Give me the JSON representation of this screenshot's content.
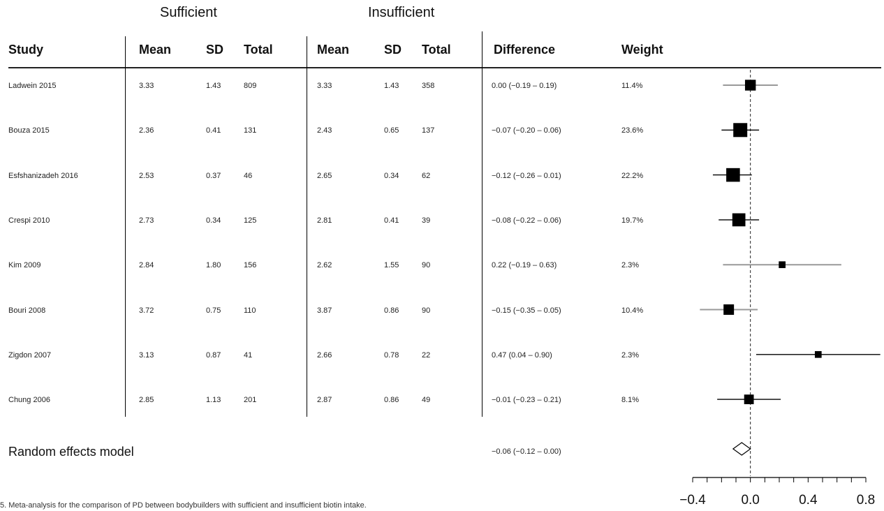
{
  "header": {
    "group_sufficient": "Sufficient",
    "group_insufficient": "Insufficient",
    "columns": [
      "Study",
      "Mean",
      "SD",
      "Total",
      "Mean",
      "SD",
      "Total",
      "Difference",
      "Weight"
    ]
  },
  "rows": [
    {
      "study": "Ladwein 2015",
      "m1": "3.33",
      "sd1": "1.43",
      "n1": "809",
      "m2": "3.33",
      "sd2": "1.43",
      "n2": "358",
      "diff": "0.00 (−0.19 – 0.19)",
      "weight": "11.4%"
    },
    {
      "study": "Bouza 2015",
      "m1": "2.36",
      "sd1": "0.41",
      "n1": "131",
      "m2": "2.43",
      "sd2": "0.65",
      "n2": "137",
      "diff": "−0.07 (−0.20 – 0.06)",
      "weight": "23.6%"
    },
    {
      "study": "Esfshanizadeh 2016",
      "m1": "2.53",
      "sd1": "0.37",
      "n1": "46",
      "m2": "2.65",
      "sd2": "0.34",
      "n2": "62",
      "diff": "−0.12 (−0.26 – 0.01)",
      "weight": "22.2%"
    },
    {
      "study": "Crespi 2010",
      "m1": "2.73",
      "sd1": "0.34",
      "n1": "125",
      "m2": "2.81",
      "sd2": "0.41",
      "n2": "39",
      "diff": "−0.08 (−0.22 – 0.06)",
      "weight": "19.7%"
    },
    {
      "study": "Kim 2009",
      "m1": "2.84",
      "sd1": "1.80",
      "n1": "156",
      "m2": "2.62",
      "sd2": "1.55",
      "n2": "90",
      "diff": "0.22 (−0.19 – 0.63)",
      "weight": "2.3%"
    },
    {
      "study": "Bouri 2008",
      "m1": "3.72",
      "sd1": "0.75",
      "n1": "110",
      "m2": "3.87",
      "sd2": "0.86",
      "n2": "90",
      "diff": "−0.15 (−0.35 – 0.05)",
      "weight": "10.4%"
    },
    {
      "study": "Zigdon 2007",
      "m1": "3.13",
      "sd1": "0.87",
      "n1": "41",
      "m2": "2.66",
      "sd2": "0.78",
      "n2": "22",
      "diff": "0.47 (0.04 – 0.90)",
      "weight": "2.3%"
    },
    {
      "study": "Chung 2006",
      "m1": "2.85",
      "sd1": "1.13",
      "n1": "201",
      "m2": "2.87",
      "sd2": "0.86",
      "n2": "49",
      "diff": "−0.01 (−0.23 – 0.21)",
      "weight": "8.1%"
    }
  ],
  "random_effects": {
    "label": "Random effects model",
    "value": "−0.06 (−0.12 – 0.00)"
  },
  "caption": "5. Meta-analysis for the comparison of PD between bodybuilders with sufficient and insufficient biotin intake.",
  "chart_data": {
    "type": "forest",
    "xlim": [
      -0.4,
      0.8
    ],
    "xticks": [
      -0.4,
      0.0,
      0.4,
      0.8
    ],
    "xtick_labels": [
      "−0.4",
      "0.0",
      "0.4",
      "0.8"
    ],
    "reference_line": 0.0,
    "studies": [
      {
        "name": "Ladwein 2015",
        "est": 0.0,
        "lo": -0.19,
        "hi": 0.19,
        "weight": 11.4
      },
      {
        "name": "Bouza 2015",
        "est": -0.07,
        "lo": -0.2,
        "hi": 0.06,
        "weight": 23.6
      },
      {
        "name": "Esfshanizadeh 2016",
        "est": -0.12,
        "lo": -0.26,
        "hi": 0.01,
        "weight": 22.2
      },
      {
        "name": "Crespi 2010",
        "est": -0.08,
        "lo": -0.22,
        "hi": 0.06,
        "weight": 19.7
      },
      {
        "name": "Kim 2009",
        "est": 0.22,
        "lo": -0.19,
        "hi": 0.63,
        "weight": 2.3
      },
      {
        "name": "Bouri 2008",
        "est": -0.15,
        "lo": -0.35,
        "hi": 0.05,
        "weight": 10.4
      },
      {
        "name": "Zigdon 2007",
        "est": 0.47,
        "lo": 0.04,
        "hi": 0.9,
        "weight": 2.3
      },
      {
        "name": "Chung 2006",
        "est": -0.01,
        "lo": -0.23,
        "hi": 0.21,
        "weight": 8.1
      }
    ],
    "pooled": {
      "est": -0.06,
      "lo": -0.12,
      "hi": 0.0
    },
    "colors": {
      "ci_line_light": "#999999",
      "ci_line_dark": "#000000",
      "marker": "#000000"
    }
  }
}
